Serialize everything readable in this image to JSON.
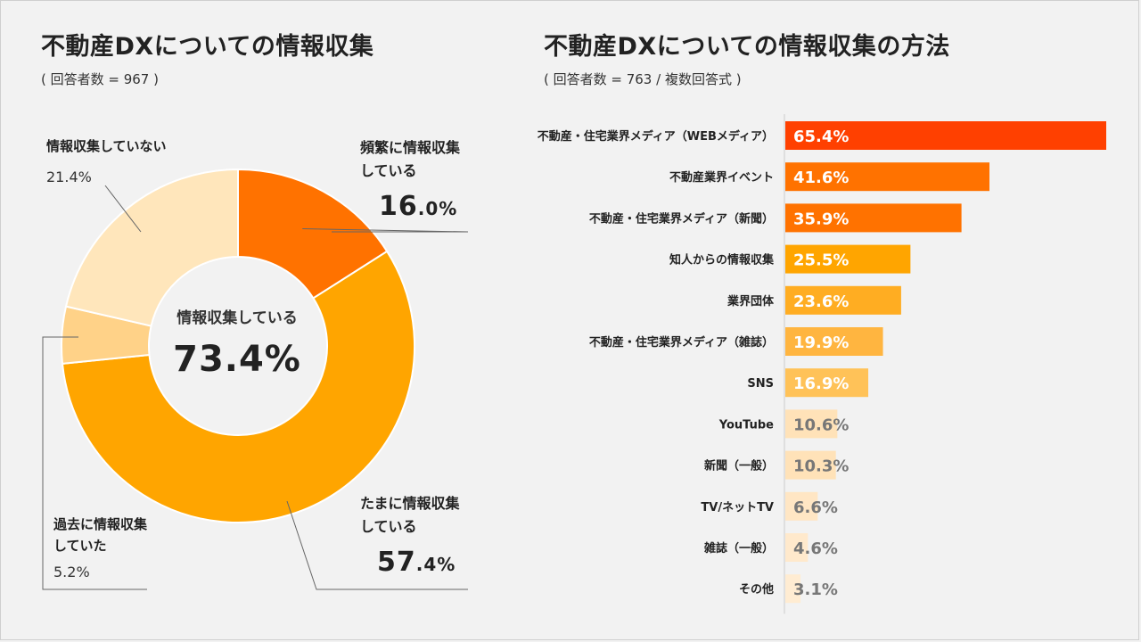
{
  "left": {
    "title": "不動産DXについての情報収集",
    "subtitle": "( 回答者数 = 967 )",
    "center_label": "情報収集している",
    "center_value": "73.4%"
  },
  "right": {
    "title": "不動産DXについての情報収集の方法",
    "subtitle": "( 回答者数 = 763 / 複数回答式 )"
  },
  "chart_data": [
    {
      "type": "pie",
      "donut": true,
      "categories": [
        "頻繁に情報収集している",
        "たまに情報収集している",
        "過去に情報収集していた",
        "情報収集していない"
      ],
      "values": [
        16.0,
        57.4,
        5.2,
        21.4
      ],
      "colors": [
        "#ff7200",
        "#ffa500",
        "#ffd288",
        "#ffe6bb"
      ],
      "slice_labels": [
        {
          "line1": "頻繁に情報収集",
          "line2": "している",
          "int": "16",
          "dec": ".0%"
        },
        {
          "line1": "たまに情報収集",
          "line2": "している",
          "int": "57",
          "dec": ".4%"
        },
        {
          "line1": "過去に情報収集",
          "line2": "していた",
          "value": "5.2%"
        },
        {
          "line1": "情報収集していない",
          "value": "21.4%"
        }
      ]
    },
    {
      "type": "bar",
      "orientation": "horizontal",
      "categories": [
        "不動産・住宅業界メディア（WEBメディア）",
        "不動産業界イベント",
        "不動産・住宅業界メディア（新聞）",
        "知人からの情報収集",
        "業界団体",
        "不動産・住宅業界メディア（雑誌）",
        "SNS",
        "YouTube",
        "新聞（一般）",
        "TV/ネットTV",
        "雑誌（一般）",
        "その他"
      ],
      "values": [
        65.4,
        41.6,
        35.9,
        25.5,
        23.6,
        19.9,
        16.9,
        10.6,
        10.3,
        6.6,
        4.6,
        3.1
      ],
      "value_labels": [
        "65.4%",
        "41.6%",
        "35.9%",
        "25.5%",
        "23.6%",
        "19.9%",
        "16.9%",
        "10.6%",
        "10.3%",
        "6.6%",
        "4.6%",
        "3.1%"
      ],
      "colors": [
        "#ff4000",
        "#ff7200",
        "#ff7200",
        "#ffa500",
        "#ffad22",
        "#ffb540",
        "#ffc258",
        "#ffe2b8",
        "#ffe2b8",
        "#ffe6c4",
        "#ffe9cc",
        "#ffecd2"
      ],
      "label_colors": [
        "#ffffff",
        "#ffffff",
        "#ffffff",
        "#ffffff",
        "#ffffff",
        "#ffffff",
        "#ffffff",
        "#777777",
        "#777777",
        "#777777",
        "#777777",
        "#777777"
      ],
      "xlim": [
        0,
        65.4
      ]
    }
  ]
}
